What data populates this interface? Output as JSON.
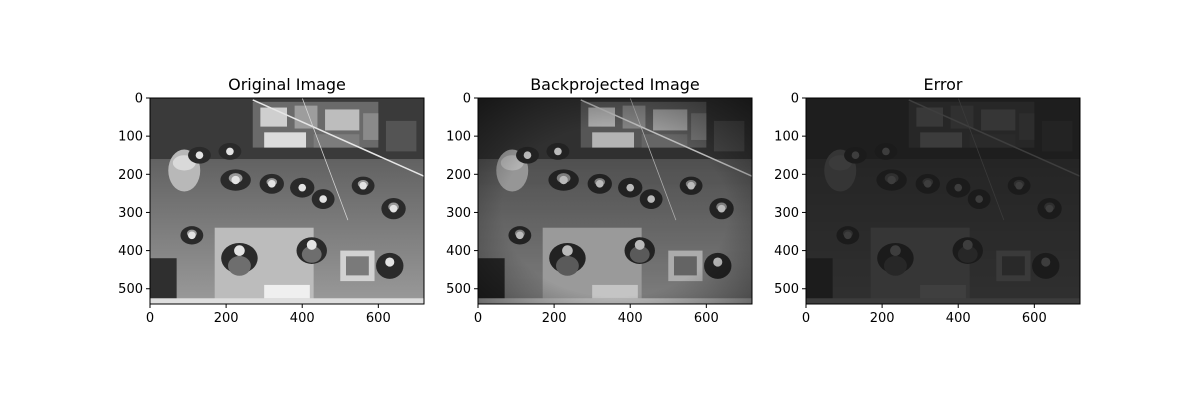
{
  "figure": {
    "background": "#ffffff"
  },
  "chart_data": [
    {
      "type": "heatmap",
      "title": "Original Image",
      "colormap": "gray",
      "image_content": "grayscale overhead photo of people in a lab",
      "x_ticks": [
        0,
        200,
        400,
        600
      ],
      "y_ticks": [
        0,
        100,
        200,
        300,
        400,
        500
      ],
      "xlim": [
        0,
        720
      ],
      "ylim": [
        540,
        0
      ]
    },
    {
      "type": "heatmap",
      "title": "Backprojected Image",
      "colormap": "gray",
      "image_content": "reconstruction of the photo, slightly darker and blurred at the edges",
      "x_ticks": [
        0,
        200,
        400,
        600
      ],
      "y_ticks": [
        0,
        100,
        200,
        300,
        400,
        500
      ],
      "xlim": [
        0,
        720
      ],
      "ylim": [
        540,
        0
      ]
    },
    {
      "type": "heatmap",
      "title": "Error",
      "colormap": "gray",
      "image_content": "dark error map showing faint edge outlines",
      "x_ticks": [
        0,
        200,
        400,
        600
      ],
      "y_ticks": [
        0,
        100,
        200,
        300,
        400,
        500
      ],
      "xlim": [
        0,
        720
      ],
      "ylim": [
        540,
        0
      ]
    }
  ]
}
